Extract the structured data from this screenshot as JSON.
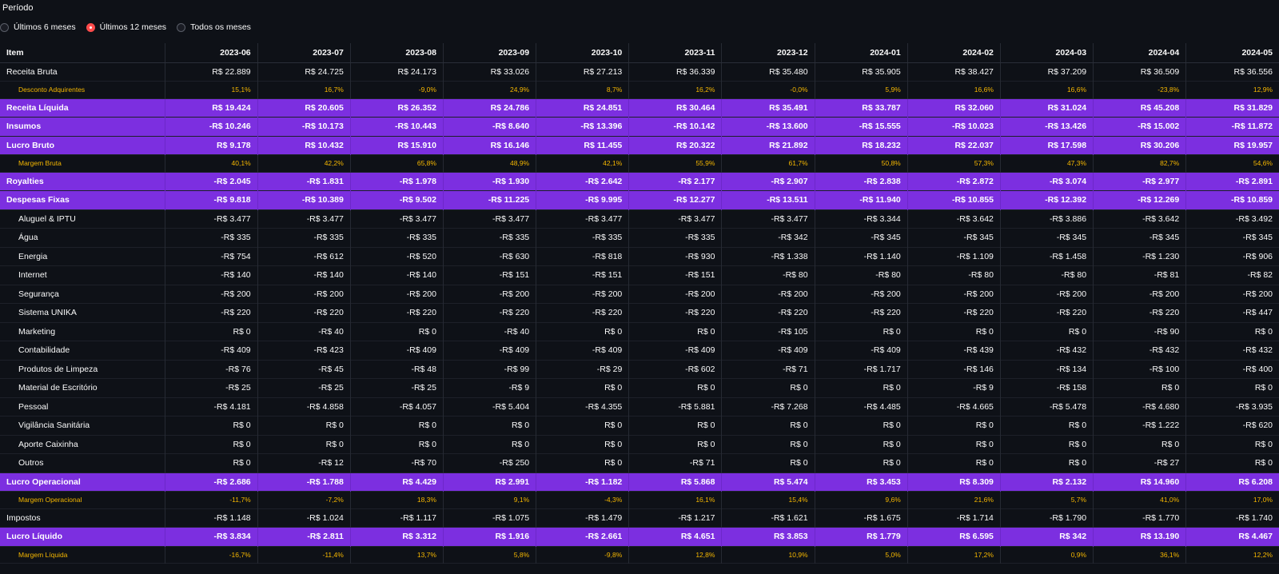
{
  "period": {
    "label": "Período",
    "options": [
      "Últimos 6 meses",
      "Últimos 12 meses",
      "Todos os meses"
    ],
    "selected": "Últimos 12 meses"
  },
  "table": {
    "item_header": "Item",
    "columns": [
      "2023-06",
      "2023-07",
      "2023-08",
      "2023-09",
      "2023-10",
      "2023-11",
      "2023-12",
      "2024-01",
      "2024-02",
      "2024-03",
      "2024-04",
      "2024-05"
    ],
    "rows": [
      {
        "label": "Receita Bruta",
        "style": "normal",
        "values": [
          "R$ 22.889",
          "R$ 24.725",
          "R$ 24.173",
          "R$ 33.026",
          "R$ 27.213",
          "R$ 36.339",
          "R$ 35.480",
          "R$ 35.905",
          "R$ 38.427",
          "R$ 37.209",
          "R$ 36.509",
          "R$ 36.556"
        ]
      },
      {
        "label": "Desconto Adquirentes",
        "style": "margin",
        "values": [
          "15,1%",
          "16,7%",
          "-9,0%",
          "24,9%",
          "8,7%",
          "16,2%",
          "-0,0%",
          "5,9%",
          "16,6%",
          "16,6%",
          "-23,8%",
          "12,9%"
        ]
      },
      {
        "label": "Receita Líquida",
        "style": "highlight",
        "values": [
          "R$ 19.424",
          "R$ 20.605",
          "R$ 26.352",
          "R$ 24.786",
          "R$ 24.851",
          "R$ 30.464",
          "R$ 35.491",
          "R$ 33.787",
          "R$ 32.060",
          "R$ 31.024",
          "R$ 45.208",
          "R$ 31.829"
        ]
      },
      {
        "label": "Insumos",
        "style": "highlight",
        "values": [
          "-R$ 10.246",
          "-R$ 10.173",
          "-R$ 10.443",
          "-R$ 8.640",
          "-R$ 13.396",
          "-R$ 10.142",
          "-R$ 13.600",
          "-R$ 15.555",
          "-R$ 10.023",
          "-R$ 13.426",
          "-R$ 15.002",
          "-R$ 11.872"
        ]
      },
      {
        "label": "Lucro Bruto",
        "style": "highlight",
        "values": [
          "R$ 9.178",
          "R$ 10.432",
          "R$ 15.910",
          "R$ 16.146",
          "R$ 11.455",
          "R$ 20.322",
          "R$ 21.892",
          "R$ 18.232",
          "R$ 22.037",
          "R$ 17.598",
          "R$ 30.206",
          "R$ 19.957"
        ]
      },
      {
        "label": "Margem Bruta",
        "style": "margin",
        "values": [
          "40,1%",
          "42,2%",
          "65,8%",
          "48,9%",
          "42,1%",
          "55,9%",
          "61,7%",
          "50,8%",
          "57,3%",
          "47,3%",
          "82,7%",
          "54,6%"
        ]
      },
      {
        "label": "Royalties",
        "style": "highlight",
        "values": [
          "-R$ 2.045",
          "-R$ 1.831",
          "-R$ 1.978",
          "-R$ 1.930",
          "-R$ 2.642",
          "-R$ 2.177",
          "-R$ 2.907",
          "-R$ 2.838",
          "-R$ 2.872",
          "-R$ 3.074",
          "-R$ 2.977",
          "-R$ 2.891"
        ]
      },
      {
        "label": "Despesas Fixas",
        "style": "highlight",
        "values": [
          "-R$ 9.818",
          "-R$ 10.389",
          "-R$ 9.502",
          "-R$ 11.225",
          "-R$ 9.995",
          "-R$ 12.277",
          "-R$ 13.511",
          "-R$ 11.940",
          "-R$ 10.855",
          "-R$ 12.392",
          "-R$ 12.269",
          "-R$ 10.859"
        ]
      },
      {
        "label": "Aluguel & IPTU",
        "style": "normal indent",
        "values": [
          "-R$ 3.477",
          "-R$ 3.477",
          "-R$ 3.477",
          "-R$ 3.477",
          "-R$ 3.477",
          "-R$ 3.477",
          "-R$ 3.477",
          "-R$ 3.344",
          "-R$ 3.642",
          "-R$ 3.886",
          "-R$ 3.642",
          "-R$ 3.492"
        ]
      },
      {
        "label": "Água",
        "style": "normal indent",
        "values": [
          "-R$ 335",
          "-R$ 335",
          "-R$ 335",
          "-R$ 335",
          "-R$ 335",
          "-R$ 335",
          "-R$ 342",
          "-R$ 345",
          "-R$ 345",
          "-R$ 345",
          "-R$ 345",
          "-R$ 345"
        ]
      },
      {
        "label": "Energia",
        "style": "normal indent",
        "values": [
          "-R$ 754",
          "-R$ 612",
          "-R$ 520",
          "-R$ 630",
          "-R$ 818",
          "-R$ 930",
          "-R$ 1.338",
          "-R$ 1.140",
          "-R$ 1.109",
          "-R$ 1.458",
          "-R$ 1.230",
          "-R$ 906"
        ]
      },
      {
        "label": "Internet",
        "style": "normal indent",
        "values": [
          "-R$ 140",
          "-R$ 140",
          "-R$ 140",
          "-R$ 151",
          "-R$ 151",
          "-R$ 151",
          "-R$ 80",
          "-R$ 80",
          "-R$ 80",
          "-R$ 80",
          "-R$ 81",
          "-R$ 82"
        ]
      },
      {
        "label": "Segurança",
        "style": "normal indent",
        "values": [
          "-R$ 200",
          "-R$ 200",
          "-R$ 200",
          "-R$ 200",
          "-R$ 200",
          "-R$ 200",
          "-R$ 200",
          "-R$ 200",
          "-R$ 200",
          "-R$ 200",
          "-R$ 200",
          "-R$ 200"
        ]
      },
      {
        "label": "Sistema UNIKA",
        "style": "normal indent",
        "values": [
          "-R$ 220",
          "-R$ 220",
          "-R$ 220",
          "-R$ 220",
          "-R$ 220",
          "-R$ 220",
          "-R$ 220",
          "-R$ 220",
          "-R$ 220",
          "-R$ 220",
          "-R$ 220",
          "-R$ 447"
        ]
      },
      {
        "label": "Marketing",
        "style": "normal indent",
        "values": [
          "R$ 0",
          "-R$ 40",
          "R$ 0",
          "-R$ 40",
          "R$ 0",
          "R$ 0",
          "-R$ 105",
          "R$ 0",
          "R$ 0",
          "R$ 0",
          "-R$ 90",
          "R$ 0"
        ]
      },
      {
        "label": "Contabilidade",
        "style": "normal indent",
        "values": [
          "-R$ 409",
          "-R$ 423",
          "-R$ 409",
          "-R$ 409",
          "-R$ 409",
          "-R$ 409",
          "-R$ 409",
          "-R$ 409",
          "-R$ 439",
          "-R$ 432",
          "-R$ 432",
          "-R$ 432"
        ]
      },
      {
        "label": "Produtos de Limpeza",
        "style": "normal indent",
        "values": [
          "-R$ 76",
          "-R$ 45",
          "-R$ 48",
          "-R$ 99",
          "-R$ 29",
          "-R$ 602",
          "-R$ 71",
          "-R$ 1.717",
          "-R$ 146",
          "-R$ 134",
          "-R$ 100",
          "-R$ 400"
        ]
      },
      {
        "label": "Material de Escritório",
        "style": "normal indent",
        "values": [
          "-R$ 25",
          "-R$ 25",
          "-R$ 25",
          "-R$ 9",
          "R$ 0",
          "R$ 0",
          "R$ 0",
          "R$ 0",
          "-R$ 9",
          "-R$ 158",
          "R$ 0",
          "R$ 0"
        ]
      },
      {
        "label": "Pessoal",
        "style": "normal indent",
        "values": [
          "-R$ 4.181",
          "-R$ 4.858",
          "-R$ 4.057",
          "-R$ 5.404",
          "-R$ 4.355",
          "-R$ 5.881",
          "-R$ 7.268",
          "-R$ 4.485",
          "-R$ 4.665",
          "-R$ 5.478",
          "-R$ 4.680",
          "-R$ 3.935"
        ]
      },
      {
        "label": "Vigilância Sanitária",
        "style": "normal indent",
        "values": [
          "R$ 0",
          "R$ 0",
          "R$ 0",
          "R$ 0",
          "R$ 0",
          "R$ 0",
          "R$ 0",
          "R$ 0",
          "R$ 0",
          "R$ 0",
          "-R$ 1.222",
          "-R$ 620"
        ]
      },
      {
        "label": "Aporte Caixinha",
        "style": "normal indent",
        "values": [
          "R$ 0",
          "R$ 0",
          "R$ 0",
          "R$ 0",
          "R$ 0",
          "R$ 0",
          "R$ 0",
          "R$ 0",
          "R$ 0",
          "R$ 0",
          "R$ 0",
          "R$ 0"
        ]
      },
      {
        "label": "Outros",
        "style": "normal indent",
        "values": [
          "R$ 0",
          "-R$ 12",
          "-R$ 70",
          "-R$ 250",
          "R$ 0",
          "-R$ 71",
          "R$ 0",
          "R$ 0",
          "R$ 0",
          "R$ 0",
          "-R$ 27",
          "R$ 0"
        ]
      },
      {
        "label": "Lucro Operacional",
        "style": "highlight",
        "values": [
          "-R$ 2.686",
          "-R$ 1.788",
          "R$ 4.429",
          "R$ 2.991",
          "-R$ 1.182",
          "R$ 5.868",
          "R$ 5.474",
          "R$ 3.453",
          "R$ 8.309",
          "R$ 2.132",
          "R$ 14.960",
          "R$ 6.208"
        ]
      },
      {
        "label": "Margem Operacional",
        "style": "margin",
        "values": [
          "-11,7%",
          "-7,2%",
          "18,3%",
          "9,1%",
          "-4,3%",
          "16,1%",
          "15,4%",
          "9,6%",
          "21,6%",
          "5,7%",
          "41,0%",
          "17,0%"
        ]
      },
      {
        "label": "Impostos",
        "style": "normal",
        "values": [
          "-R$ 1.148",
          "-R$ 1.024",
          "-R$ 1.117",
          "-R$ 1.075",
          "-R$ 1.479",
          "-R$ 1.217",
          "-R$ 1.621",
          "-R$ 1.675",
          "-R$ 1.714",
          "-R$ 1.790",
          "-R$ 1.770",
          "-R$ 1.740"
        ]
      },
      {
        "label": "Lucro Líquido",
        "style": "highlight",
        "values": [
          "-R$ 3.834",
          "-R$ 2.811",
          "R$ 3.312",
          "R$ 1.916",
          "-R$ 2.661",
          "R$ 4.651",
          "R$ 3.853",
          "R$ 1.779",
          "R$ 6.595",
          "R$ 342",
          "R$ 13.190",
          "R$ 4.467"
        ]
      },
      {
        "label": "Margem Líquida",
        "style": "margin",
        "values": [
          "-16,7%",
          "-11,4%",
          "13,7%",
          "5,8%",
          "-9,8%",
          "12,8%",
          "10,9%",
          "5,0%",
          "17,2%",
          "0,9%",
          "36,1%",
          "12,2%"
        ]
      }
    ]
  },
  "colors": {
    "background": "#0e1117",
    "highlight_row": "#7c2fe0",
    "margin_text": "#f5b700",
    "radio_selected": "#ff4b4b"
  }
}
